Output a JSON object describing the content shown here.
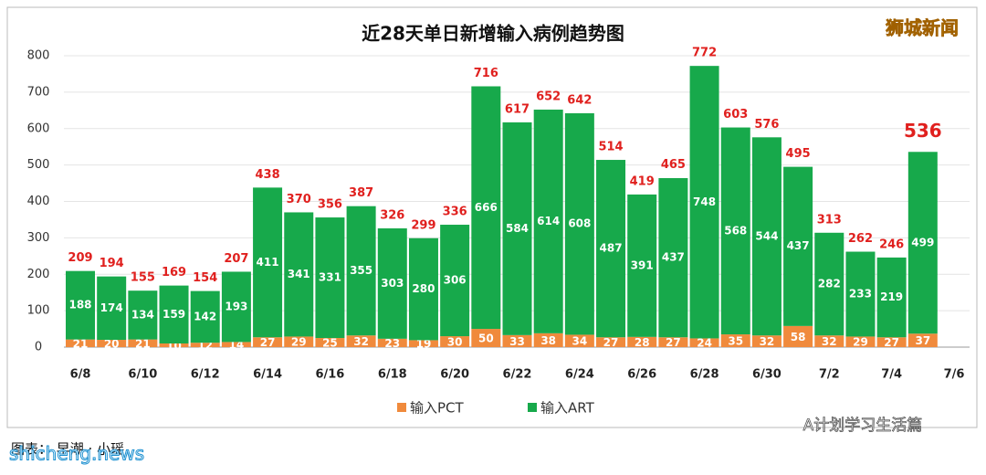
{
  "chart_data": {
    "type": "stacked_bar",
    "title": "近28天单日新增输入病例趋势图",
    "categories": [
      "6/8",
      null,
      "6/10",
      null,
      "6/12",
      null,
      "6/14",
      null,
      "6/16",
      null,
      "6/18",
      null,
      "6/20",
      null,
      "6/22",
      null,
      "6/24",
      null,
      "6/26",
      null,
      "6/28",
      null,
      "6/30",
      null,
      "7/2",
      null,
      "7/4",
      null,
      "7/6"
    ],
    "series": [
      {
        "name": "输入PCT",
        "color": "#f08a3c",
        "values": [
          21,
          20,
          21,
          10,
          12,
          14,
          27,
          29,
          25,
          32,
          23,
          19,
          30,
          50,
          33,
          38,
          34,
          27,
          28,
          27,
          24,
          35,
          32,
          58,
          32,
          29,
          27,
          37,
          null
        ]
      },
      {
        "name": "输入ART",
        "color": "#17a94b",
        "values": [
          188,
          174,
          134,
          159,
          142,
          193,
          411,
          341,
          331,
          355,
          303,
          280,
          306,
          666,
          584,
          614,
          608,
          487,
          391,
          437,
          748,
          568,
          544,
          437,
          282,
          233,
          219,
          499,
          null
        ]
      }
    ],
    "totals": [
      209,
      194,
      155,
      169,
      154,
      207,
      438,
      370,
      356,
      387,
      326,
      299,
      336,
      716,
      617,
      652,
      642,
      514,
      419,
      465,
      772,
      603,
      576,
      495,
      313,
      262,
      246,
      536,
      null
    ],
    "ylim": [
      0,
      800
    ],
    "yticks": [
      0,
      100,
      200,
      300,
      400,
      500,
      600,
      700,
      800
    ],
    "grid": true,
    "watermark": "狮城新闻",
    "footer_left": "图表：  早潮 · 小瑶",
    "footer_site": "shicheng.news",
    "footer_right": "A计划学习生活篇"
  }
}
